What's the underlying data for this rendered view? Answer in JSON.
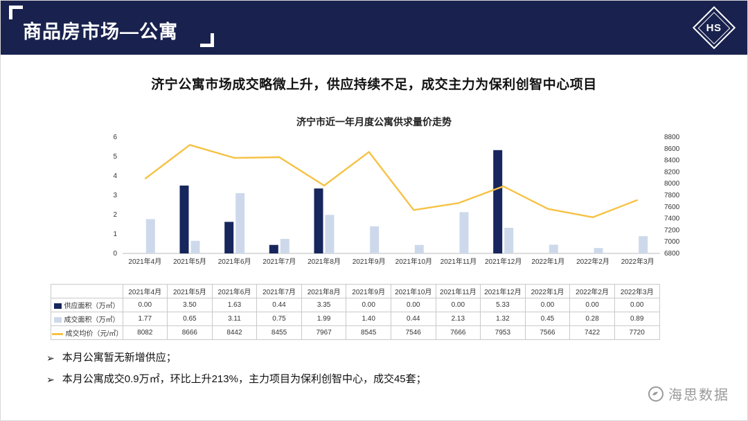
{
  "header": {
    "title": "商品房市场—公寓",
    "logo_text": "HS"
  },
  "headline": "济宁公寓市场成交略微上升，供应持续不足，成交主力为保利创智中心项目",
  "chart_data": {
    "type": "bar+line",
    "title": "济宁市近一年月度公寓供求量价走势",
    "categories": [
      "2021年4月",
      "2021年5月",
      "2021年6月",
      "2021年7月",
      "2021年8月",
      "2021年9月",
      "2021年10月",
      "2021年11月",
      "2021年12月",
      "2022年1月",
      "2022年2月",
      "2022年3月"
    ],
    "series": [
      {
        "name": "供应面积（万㎡）",
        "kind": "bar",
        "axis": "left",
        "color": "#17265c",
        "format": "2dp",
        "values": [
          0.0,
          3.5,
          1.63,
          0.44,
          3.35,
          0.0,
          0.0,
          0.0,
          5.33,
          0.0,
          0.0,
          0.0
        ]
      },
      {
        "name": "成交面积（万㎡）",
        "kind": "bar",
        "axis": "left",
        "color": "#cdd9eb",
        "format": "2dp",
        "values": [
          1.77,
          0.65,
          3.11,
          0.75,
          1.99,
          1.4,
          0.44,
          2.13,
          1.32,
          0.45,
          0.28,
          0.89
        ]
      },
      {
        "name": "成交均价（元/㎡）",
        "kind": "line",
        "axis": "right",
        "color": "#f6c244",
        "format": "int",
        "values": [
          8082,
          8666,
          8442,
          8455,
          7967,
          8545,
          7546,
          7666,
          7953,
          7566,
          7422,
          7720
        ]
      }
    ],
    "left_axis": {
      "min": 0,
      "max": 6,
      "step": 1
    },
    "right_axis": {
      "min": 6800,
      "max": 8800,
      "step": 200
    },
    "grid": false,
    "legend_position": "table-rows-left"
  },
  "bullet_marker": "➢",
  "bullets": [
    "本月公寓暂无新增供应；",
    "本月公寓成交0.9万㎡，环比上升213%，主力项目为保利创智中心，成交45套；"
  ],
  "watermark": {
    "text": "海思数据"
  },
  "colors": {
    "header_bg": "#19224e",
    "supply_bar": "#17265c",
    "deal_bar": "#cdd9eb",
    "price_line": "#f6c244",
    "axis_text": "#333333",
    "table_border": "#c9c9c9"
  }
}
